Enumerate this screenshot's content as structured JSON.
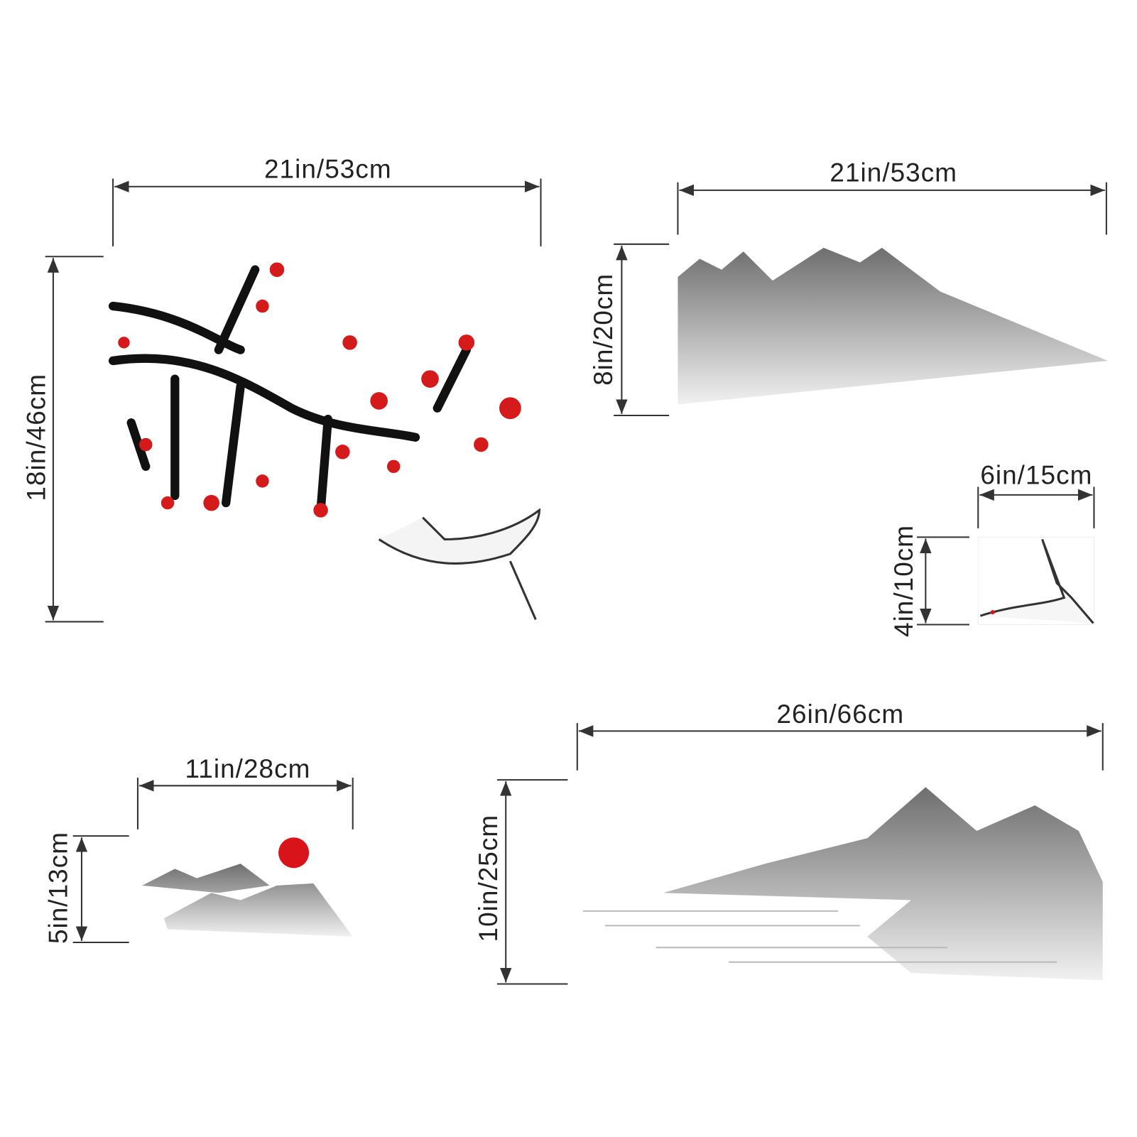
{
  "items": [
    {
      "width": "21in/53cm",
      "height": "18in/46cm"
    },
    {
      "width": "21in/53cm",
      "height": "8in/20cm"
    },
    {
      "width": "6in/15cm",
      "height": "4in/10cm"
    },
    {
      "width": "11in/28cm",
      "height": "5in/13cm"
    },
    {
      "width": "26in/66cm",
      "height": "10in/25cm"
    }
  ]
}
